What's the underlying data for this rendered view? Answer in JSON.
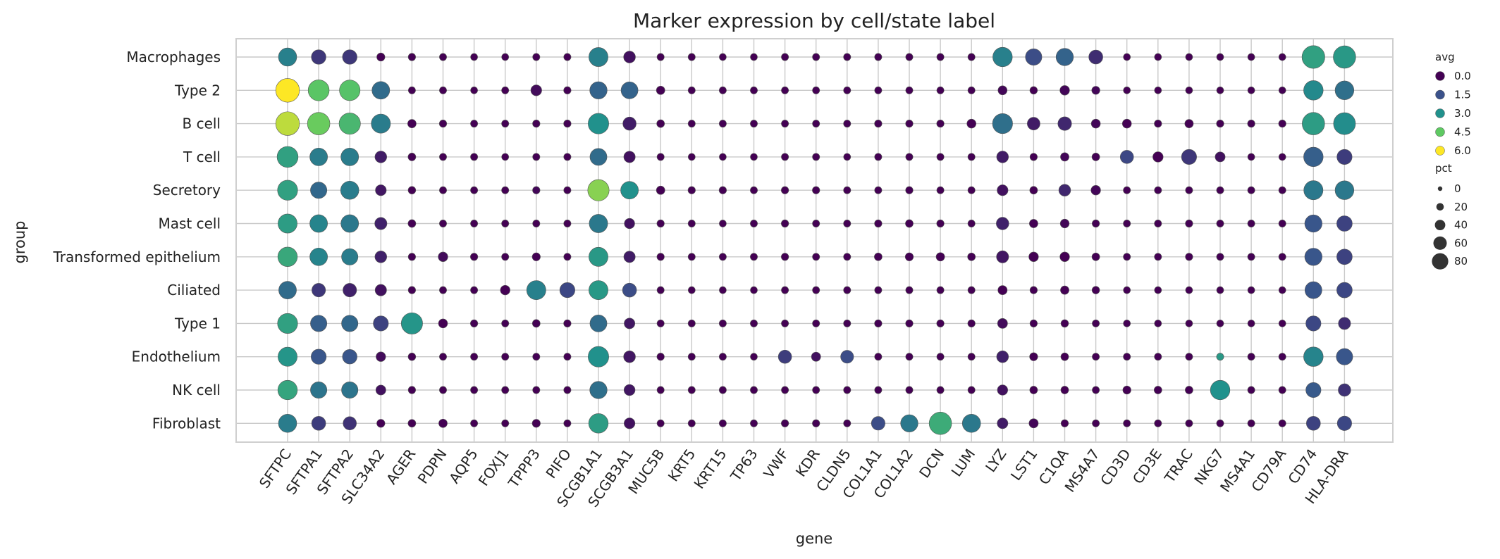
{
  "chart_data": {
    "type": "scatter",
    "title": "Marker expression by cell/state label",
    "xlabel": "gene",
    "ylabel": "group",
    "genes": [
      "SFTPC",
      "SFTPA1",
      "SFTPA2",
      "SLC34A2",
      "AGER",
      "PDPN",
      "AQP5",
      "FOXJ1",
      "TPPP3",
      "PIFO",
      "SCGB1A1",
      "SCGB3A1",
      "MUC5B",
      "KRT5",
      "KRT15",
      "TP63",
      "VWF",
      "KDR",
      "CLDN5",
      "COL1A1",
      "COL1A2",
      "DCN",
      "LUM",
      "LYZ",
      "LST1",
      "C1QA",
      "MS4A7",
      "CD3D",
      "CD3E",
      "TRAC",
      "NKG7",
      "MS4A1",
      "CD79A",
      "CD74",
      "HLA-DRA"
    ],
    "groups": [
      "Macrophages",
      "Type 2",
      "B cell",
      "T cell",
      "Secretory",
      "Mast cell",
      "Transformed epithelium",
      "Ciliated",
      "Type 1",
      "Endothelium",
      "NK cell",
      "Fibroblast"
    ],
    "grid": true,
    "legend_position": "right",
    "color_legend": {
      "title": "avg",
      "values": [
        0.0,
        1.5,
        3.0,
        4.5,
        6.0
      ],
      "labels": [
        "0.0",
        "1.5",
        "3.0",
        "4.5",
        "6.0"
      ],
      "colormap": "viridis",
      "range": [
        0,
        6
      ]
    },
    "size_legend": {
      "title": "pct",
      "values": [
        0,
        20,
        40,
        60,
        80
      ],
      "labels": [
        "0",
        "20",
        "40",
        "60",
        "80"
      ]
    },
    "avg": [
      [
        2.6,
        1.0,
        1.0,
        0.0,
        0.0,
        0.0,
        0.0,
        0.0,
        0.0,
        0.0,
        2.6,
        0.3,
        0.0,
        0.0,
        0.0,
        0.0,
        0.0,
        0.0,
        0.0,
        0.0,
        0.0,
        0.0,
        0.0,
        2.6,
        1.4,
        1.9,
        0.8,
        0.0,
        0.0,
        0.0,
        0.0,
        0.0,
        0.0,
        3.4,
        3.2
      ],
      [
        6.0,
        4.4,
        4.3,
        2.1,
        0.0,
        0.0,
        0.0,
        0.0,
        0.2,
        0.0,
        1.9,
        1.9,
        0.0,
        0.0,
        0.0,
        0.0,
        0.0,
        0.0,
        0.0,
        0.0,
        0.0,
        0.0,
        0.0,
        0.1,
        0.0,
        0.1,
        0.1,
        0.0,
        0.0,
        0.0,
        0.0,
        0.0,
        0.0,
        2.8,
        2.2
      ],
      [
        5.4,
        4.6,
        4.0,
        2.5,
        0.0,
        0.0,
        0.0,
        0.0,
        0.0,
        0.0,
        3.0,
        0.5,
        0.0,
        0.0,
        0.0,
        0.0,
        0.0,
        0.0,
        0.0,
        0.0,
        0.0,
        0.0,
        0.0,
        2.2,
        0.5,
        0.7,
        0.1,
        0.0,
        0.0,
        0.0,
        0.0,
        0.0,
        0.0,
        3.3,
        2.9
      ],
      [
        3.4,
        2.5,
        2.5,
        0.5,
        0.0,
        0.0,
        0.0,
        0.0,
        0.0,
        0.0,
        2.1,
        0.3,
        0.0,
        0.0,
        0.0,
        0.0,
        0.0,
        0.0,
        0.0,
        0.0,
        0.0,
        0.0,
        0.0,
        0.5,
        0.0,
        0.1,
        0.0,
        1.3,
        0.0,
        1.0,
        0.3,
        0.0,
        0.0,
        1.8,
        1.1
      ],
      [
        3.4,
        2.0,
        2.5,
        0.4,
        0.0,
        0.0,
        0.0,
        0.0,
        0.1,
        0.0,
        4.9,
        3.0,
        0.0,
        0.0,
        0.0,
        0.0,
        0.0,
        0.0,
        0.0,
        0.0,
        0.0,
        0.0,
        0.0,
        0.3,
        0.0,
        0.7,
        0.1,
        0.0,
        0.0,
        0.0,
        0.0,
        0.0,
        0.0,
        2.4,
        2.4
      ],
      [
        3.3,
        2.7,
        2.4,
        0.6,
        0.0,
        0.0,
        0.0,
        0.0,
        0.0,
        0.0,
        2.4,
        0.3,
        0.0,
        0.0,
        0.0,
        0.0,
        0.0,
        0.0,
        0.0,
        0.0,
        0.0,
        0.0,
        0.0,
        0.6,
        0.0,
        0.1,
        0.0,
        0.0,
        0.0,
        0.0,
        0.0,
        0.0,
        0.0,
        1.6,
        1.2
      ],
      [
        3.6,
        2.7,
        2.5,
        0.6,
        0.0,
        0.2,
        0.0,
        0.0,
        0.0,
        0.0,
        3.2,
        0.5,
        0.0,
        0.0,
        0.0,
        0.0,
        0.0,
        0.0,
        0.0,
        0.0,
        0.0,
        0.0,
        0.0,
        0.4,
        0.0,
        0.0,
        0.0,
        0.0,
        0.0,
        0.0,
        0.0,
        0.0,
        0.0,
        1.6,
        1.2
      ],
      [
        2.1,
        1.0,
        0.6,
        0.3,
        0.0,
        0.0,
        0.0,
        0.0,
        2.6,
        1.3,
        3.2,
        1.4,
        0.0,
        0.0,
        0.0,
        0.0,
        0.0,
        0.0,
        0.0,
        0.0,
        0.0,
        0.0,
        0.0,
        0.0,
        0.0,
        0.0,
        0.0,
        0.0,
        0.0,
        0.0,
        0.0,
        0.0,
        0.0,
        1.6,
        1.3
      ],
      [
        3.4,
        1.8,
        2.0,
        1.2,
        3.1,
        0.0,
        0.0,
        0.0,
        0.0,
        0.0,
        2.1,
        0.4,
        0.0,
        0.0,
        0.0,
        0.0,
        0.0,
        0.0,
        0.0,
        0.0,
        0.0,
        0.0,
        0.0,
        0.2,
        0.0,
        0.0,
        0.0,
        0.0,
        0.0,
        0.0,
        0.0,
        0.0,
        0.0,
        1.3,
        0.8
      ],
      [
        3.1,
        1.6,
        1.6,
        0.2,
        0.0,
        0.0,
        0.0,
        0.0,
        0.0,
        0.0,
        3.0,
        0.4,
        0.0,
        0.0,
        0.0,
        0.0,
        1.1,
        0.3,
        1.4,
        0.0,
        0.0,
        0.0,
        0.0,
        0.6,
        0.0,
        0.0,
        0.0,
        0.0,
        0.0,
        0.0,
        3.2,
        0.0,
        0.0,
        2.7,
        1.6
      ],
      [
        3.5,
        2.3,
        2.3,
        0.3,
        0.0,
        0.0,
        0.0,
        0.0,
        0.0,
        0.0,
        2.2,
        0.4,
        0.0,
        0.0,
        0.0,
        0.0,
        0.0,
        0.0,
        0.0,
        0.0,
        0.0,
        0.0,
        0.0,
        0.3,
        0.0,
        0.0,
        0.0,
        0.0,
        0.0,
        0.0,
        3.0,
        0.0,
        0.0,
        1.7,
        0.9
      ],
      [
        2.5,
        1.1,
        0.9,
        0.0,
        0.0,
        0.0,
        0.0,
        0.0,
        0.0,
        0.0,
        3.3,
        0.3,
        0.0,
        0.0,
        0.0,
        0.0,
        0.0,
        0.0,
        0.0,
        1.4,
        2.4,
        3.7,
        2.4,
        0.5,
        0.1,
        0.0,
        0.0,
        0.0,
        0.0,
        0.0,
        0.0,
        0.0,
        0.0,
        1.2,
        1.3
      ]
    ],
    "pct": [
      [
        65,
        45,
        45,
        10,
        6,
        5,
        4,
        4,
        5,
        5,
        70,
        30,
        5,
        5,
        4,
        4,
        5,
        5,
        5,
        5,
        5,
        5,
        5,
        72,
        55,
        60,
        42,
        4,
        4,
        4,
        4,
        4,
        4,
        90,
        88
      ],
      [
        95,
        80,
        78,
        62,
        5,
        5,
        4,
        5,
        25,
        6,
        60,
        58,
        12,
        5,
        5,
        5,
        5,
        5,
        5,
        5,
        5,
        5,
        5,
        15,
        7,
        18,
        10,
        4,
        4,
        4,
        4,
        4,
        4,
        72,
        68
      ],
      [
        95,
        88,
        82,
        70,
        12,
        6,
        5,
        5,
        6,
        6,
        78,
        38,
        8,
        5,
        5,
        5,
        5,
        5,
        5,
        6,
        6,
        6,
        15,
        75,
        35,
        40,
        15,
        15,
        6,
        12,
        6,
        6,
        6,
        88,
        85
      ],
      [
        80,
        62,
        62,
        30,
        8,
        5,
        5,
        4,
        5,
        5,
        58,
        28,
        5,
        4,
        4,
        4,
        5,
        5,
        4,
        5,
        5,
        5,
        5,
        30,
        6,
        12,
        8,
        38,
        22,
        48,
        20,
        4,
        4,
        72,
        48
      ],
      [
        75,
        55,
        65,
        25,
        7,
        5,
        5,
        5,
        6,
        5,
        82,
        62,
        12,
        6,
        6,
        5,
        6,
        6,
        5,
        5,
        6,
        5,
        5,
        25,
        8,
        30,
        18,
        5,
        5,
        5,
        5,
        5,
        5,
        70,
        68
      ],
      [
        70,
        62,
        62,
        32,
        8,
        5,
        5,
        5,
        5,
        5,
        66,
        22,
        6,
        5,
        4,
        5,
        6,
        5,
        5,
        6,
        8,
        6,
        5,
        34,
        12,
        14,
        6,
        5,
        5,
        6,
        5,
        5,
        5,
        60,
        50
      ],
      [
        72,
        62,
        55,
        30,
        6,
        18,
        6,
        5,
        10,
        5,
        70,
        28,
        6,
        5,
        5,
        5,
        6,
        5,
        5,
        8,
        10,
        12,
        8,
        32,
        18,
        18,
        8,
        5,
        5,
        6,
        5,
        5,
        5,
        60,
        50
      ],
      [
        62,
        40,
        40,
        28,
        6,
        5,
        5,
        18,
        70,
        48,
        70,
        42,
        5,
        4,
        4,
        4,
        5,
        5,
        5,
        5,
        5,
        5,
        5,
        16,
        6,
        12,
        7,
        4,
        4,
        4,
        4,
        4,
        4,
        58,
        50
      ],
      [
        75,
        55,
        55,
        48,
        82,
        15,
        6,
        5,
        8,
        6,
        58,
        24,
        5,
        5,
        5,
        5,
        5,
        5,
        5,
        6,
        6,
        6,
        6,
        20,
        6,
        7,
        5,
        4,
        4,
        4,
        4,
        4,
        4,
        48,
        32
      ],
      [
        70,
        48,
        45,
        18,
        7,
        5,
        5,
        5,
        5,
        5,
        78,
        30,
        6,
        5,
        5,
        4,
        38,
        16,
        36,
        5,
        5,
        5,
        5,
        30,
        10,
        8,
        5,
        5,
        5,
        5,
        5,
        5,
        5,
        72,
        55
      ],
      [
        72,
        55,
        55,
        20,
        6,
        5,
        5,
        5,
        5,
        5,
        60,
        26,
        5,
        5,
        5,
        5,
        5,
        5,
        5,
        5,
        5,
        5,
        5,
        22,
        8,
        8,
        5,
        10,
        8,
        8,
        72,
        5,
        5,
        48,
        34
      ],
      [
        65,
        42,
        38,
        10,
        8,
        12,
        5,
        5,
        10,
        5,
        72,
        25,
        5,
        5,
        5,
        5,
        6,
        6,
        5,
        40,
        60,
        88,
        65,
        24,
        16,
        6,
        5,
        5,
        5,
        5,
        5,
        5,
        5,
        42,
        44
      ]
    ]
  }
}
